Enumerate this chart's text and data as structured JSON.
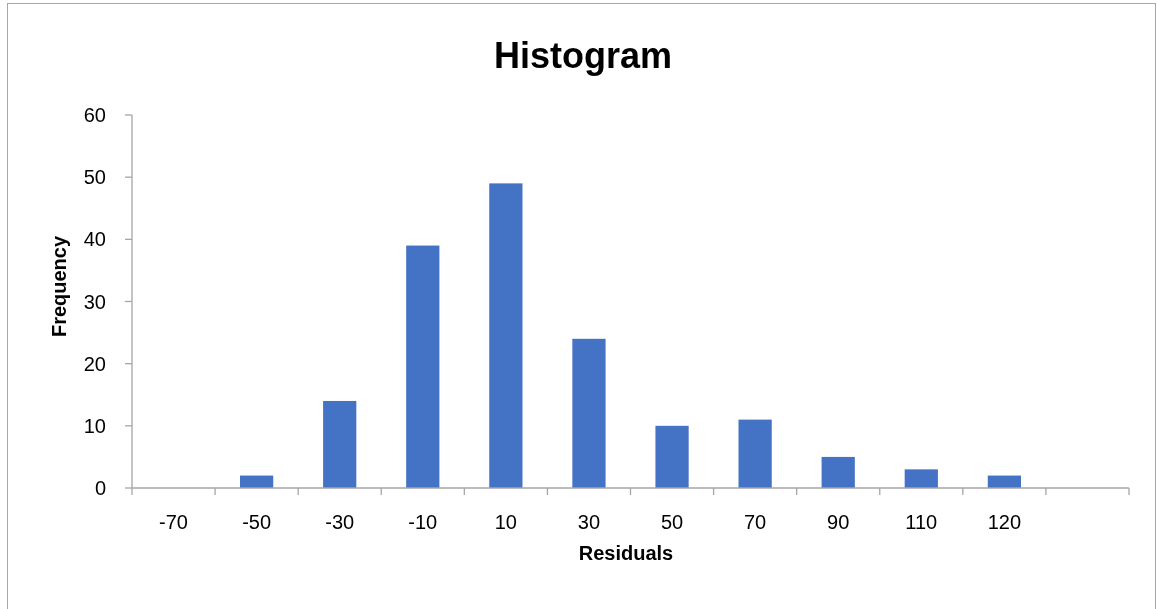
{
  "chart_data": {
    "type": "bar",
    "title": "Histogram",
    "xlabel": "Residuals",
    "ylabel": "Frequency",
    "categories": [
      "-70",
      "-50",
      "-30",
      "-10",
      "10",
      "30",
      "50",
      "70",
      "90",
      "110",
      "120",
      null
    ],
    "values": [
      0,
      2,
      14,
      39,
      49,
      24,
      10,
      11,
      5,
      3,
      2,
      null
    ],
    "color": "#4472c4",
    "ylim": [
      0,
      60
    ],
    "yticks": [
      0,
      10,
      20,
      30,
      40,
      50,
      60
    ]
  }
}
